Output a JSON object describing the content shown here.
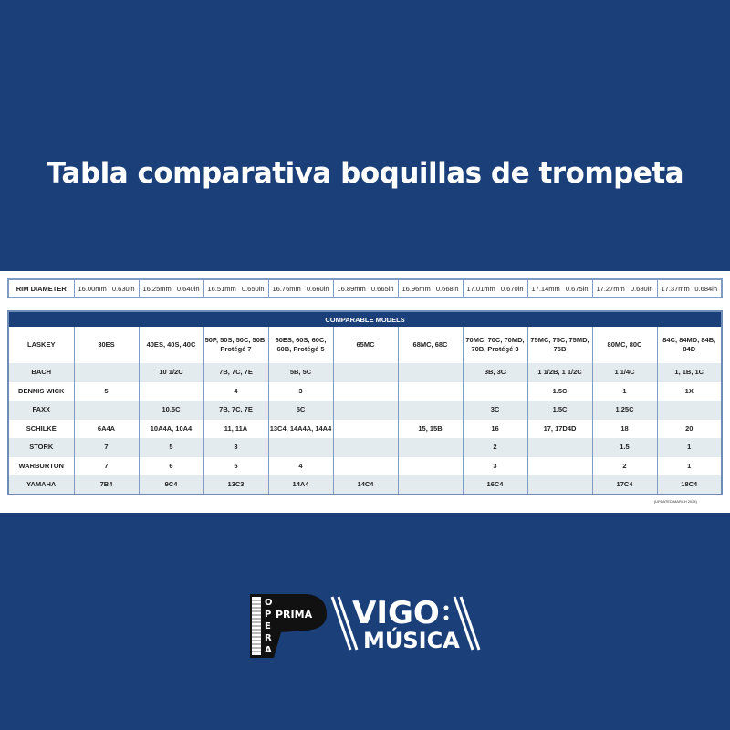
{
  "title": "Tabla comparativa boquillas de trompeta",
  "rim": {
    "label": "RIM DIAMETER",
    "values": [
      [
        "16.00mm",
        "0.630in"
      ],
      [
        "16.25mm",
        "0.640in"
      ],
      [
        "16.51mm",
        "0.650in"
      ],
      [
        "16.76mm",
        "0.660in"
      ],
      [
        "16.89mm",
        "0.665in"
      ],
      [
        "16.96mm",
        "0.668in"
      ],
      [
        "17.01mm",
        "0.670in"
      ],
      [
        "17.14mm",
        "0.675in"
      ],
      [
        "17.27mm",
        "0.680in"
      ],
      [
        "17.37mm",
        "0.684in"
      ]
    ]
  },
  "comparable": {
    "header": "COMPARABLE MODELS",
    "rows": [
      {
        "brand": "LASKEY",
        "cells": [
          "30ES",
          "40ES, 40S, 40C",
          "50P, 50S, 50C, 50B, Protégé 7",
          "60ES, 60S, 60C, 60B, Protégé 5",
          "65MC",
          "68MC, 68C",
          "70MC, 70C, 70MD, 70B, Protégé 3",
          "75MC, 75C, 75MD, 75B",
          "80MC, 80C",
          "84C, 84MD, 84B, 84D"
        ]
      },
      {
        "brand": "BACH",
        "cells": [
          "",
          "10 1/2C",
          "7B, 7C, 7E",
          "5B, 5C",
          "",
          "",
          "3B, 3C",
          "1 1/2B, 1 1/2C",
          "1 1/4C",
          "1, 1B, 1C"
        ]
      },
      {
        "brand": "DENNIS WICK",
        "cells": [
          "5",
          "",
          "4",
          "3",
          "",
          "",
          "",
          "1.5C",
          "1",
          "1X"
        ]
      },
      {
        "brand": "FAXX",
        "cells": [
          "",
          "10.5C",
          "7B, 7C, 7E",
          "5C",
          "",
          "",
          "3C",
          "1.5C",
          "1.25C",
          ""
        ]
      },
      {
        "brand": "SCHILKE",
        "cells": [
          "6A4A",
          "10A4A, 10A4",
          "11, 11A",
          "13C4, 14A4A, 14A4",
          "",
          "15, 15B",
          "16",
          "17, 17D4D",
          "18",
          "20"
        ]
      },
      {
        "brand": "STORK",
        "cells": [
          "7",
          "5",
          "3",
          "",
          "",
          "",
          "2",
          "",
          "1.5",
          "1"
        ]
      },
      {
        "brand": "WARBURTON",
        "cells": [
          "7",
          "6",
          "5",
          "4",
          "",
          "",
          "3",
          "",
          "2",
          "1"
        ]
      },
      {
        "brand": "YAMAHA",
        "cells": [
          "7B4",
          "9C4",
          "13C3",
          "14A4",
          "14C4",
          "",
          "16C4",
          "",
          "17C4",
          "18C4"
        ]
      }
    ]
  },
  "updated": "(UPDATED MARCH 2024)",
  "logos": {
    "opera_prima": "OPERA PRIMA",
    "vigo_musica": "VIGO MÚSICA"
  },
  "colors": {
    "background": "#1b4079",
    "header": "#1b4079",
    "alt_row": "#e3ebef"
  }
}
